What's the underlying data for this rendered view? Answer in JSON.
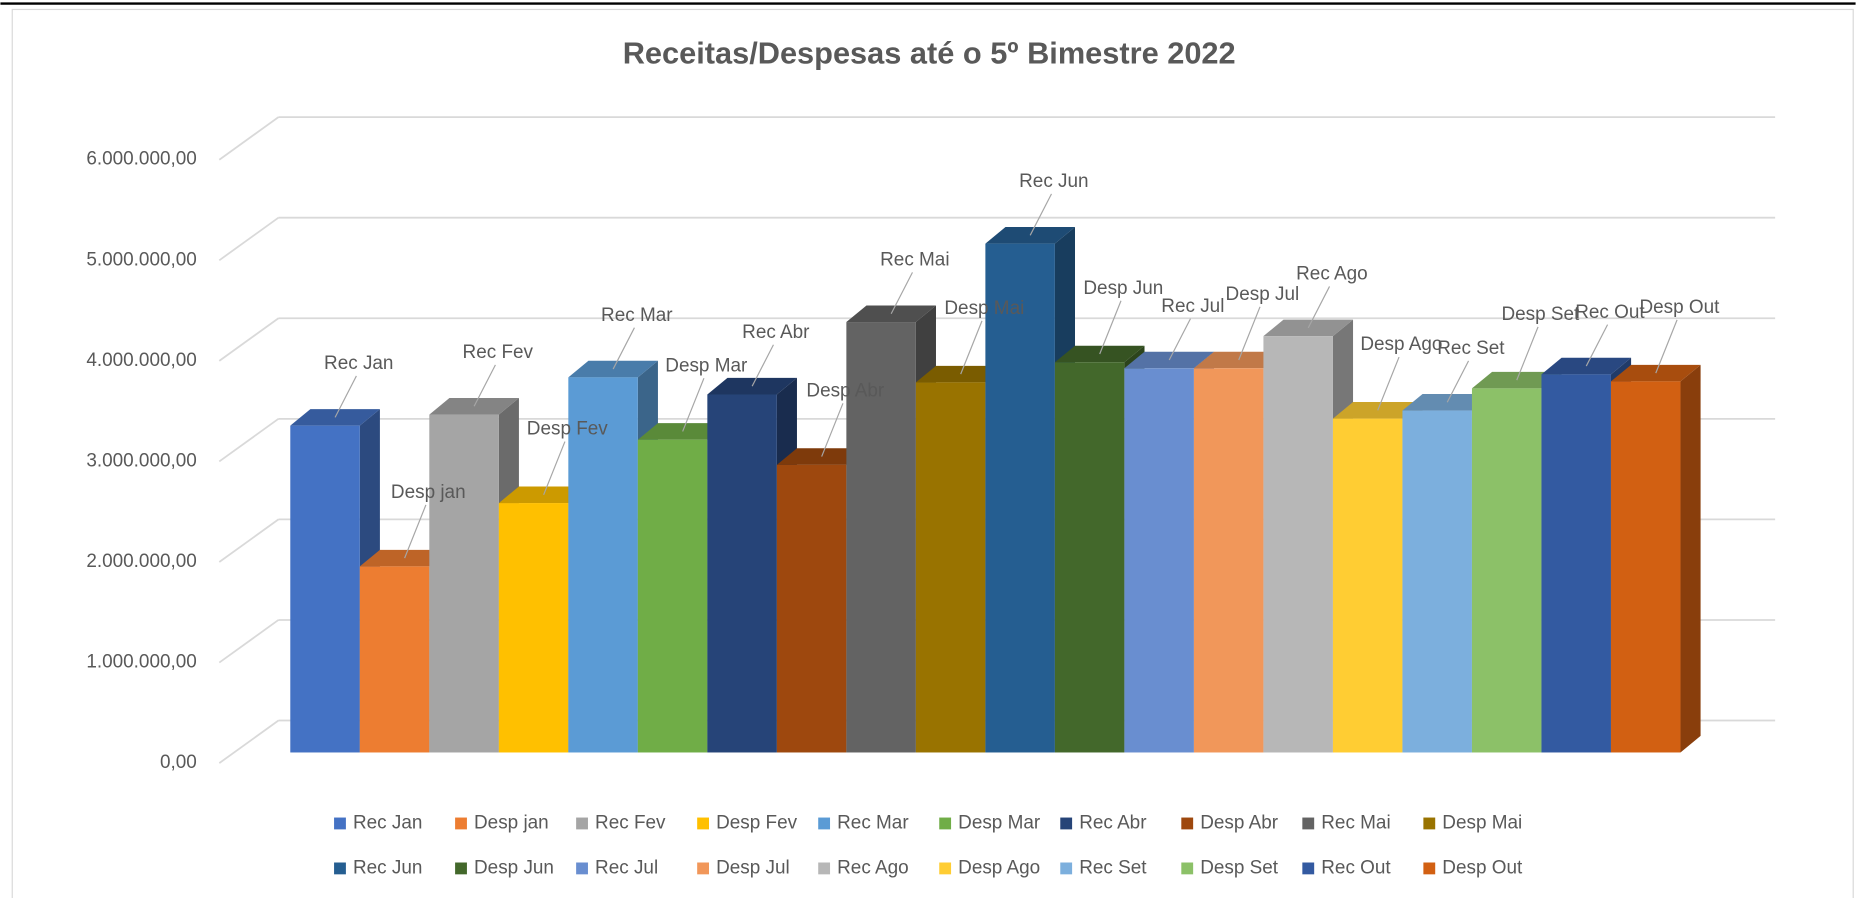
{
  "chart_data": {
    "type": "bar3d",
    "title": "Receitas/Despesas até o 5º Bimestre 2022",
    "ylim": [
      0,
      6000000
    ],
    "yticks": [
      {
        "value": 0,
        "label": "0,00"
      },
      {
        "value": 1000000,
        "label": "1.000.000,00"
      },
      {
        "value": 2000000,
        "label": "2.000.000,00"
      },
      {
        "value": 3000000,
        "label": "3.000.000,00"
      },
      {
        "value": 4000000,
        "label": "4.000.000,00"
      },
      {
        "value": 5000000,
        "label": "5.000.000,00"
      },
      {
        "value": 6000000,
        "label": "6.000.000,00"
      }
    ],
    "grid": true,
    "legend": "bottom",
    "series": [
      {
        "name": "Rec Jan",
        "color": "#4472c4",
        "values": [
          3250000
        ]
      },
      {
        "name": "Desp jan",
        "color": "#ed7d31",
        "values": [
          1850000
        ]
      },
      {
        "name": "Rec Fev",
        "color": "#a5a5a5",
        "values": [
          3360000
        ]
      },
      {
        "name": "Desp Fev",
        "color": "#ffc000",
        "values": [
          2480000
        ]
      },
      {
        "name": "Rec Mar",
        "color": "#5b9bd5",
        "values": [
          3730000
        ]
      },
      {
        "name": "Desp Mar",
        "color": "#70ad47",
        "values": [
          3110000
        ]
      },
      {
        "name": "Rec Abr",
        "color": "#264478",
        "values": [
          3560000
        ]
      },
      {
        "name": "Desp Abr",
        "color": "#9e480e",
        "values": [
          2860000
        ]
      },
      {
        "name": "Rec Mai",
        "color": "#636363",
        "values": [
          4280000
        ]
      },
      {
        "name": "Desp Mai",
        "color": "#997300",
        "values": [
          3680000
        ]
      },
      {
        "name": "Rec Jun",
        "color": "#255e91",
        "values": [
          5060000
        ]
      },
      {
        "name": "Desp Jun",
        "color": "#43682b",
        "values": [
          3880000
        ]
      },
      {
        "name": "Rec Jul",
        "color": "#698ed0",
        "values": [
          3820000
        ]
      },
      {
        "name": "Desp Jul",
        "color": "#f1975a",
        "values": [
          3820000
        ]
      },
      {
        "name": "Rec Ago",
        "color": "#b7b7b7",
        "values": [
          4140000
        ]
      },
      {
        "name": "Desp Ago",
        "color": "#ffcd33",
        "values": [
          3320000
        ]
      },
      {
        "name": "Rec Set",
        "color": "#7cafdd",
        "values": [
          3400000
        ]
      },
      {
        "name": "Desp Set",
        "color": "#8cc168",
        "values": [
          3620000
        ]
      },
      {
        "name": "Rec Out",
        "color": "#335aa1",
        "values": [
          3760000
        ]
      },
      {
        "name": "Desp Out",
        "color": "#d26012",
        "values": [
          3690000
        ]
      }
    ]
  }
}
